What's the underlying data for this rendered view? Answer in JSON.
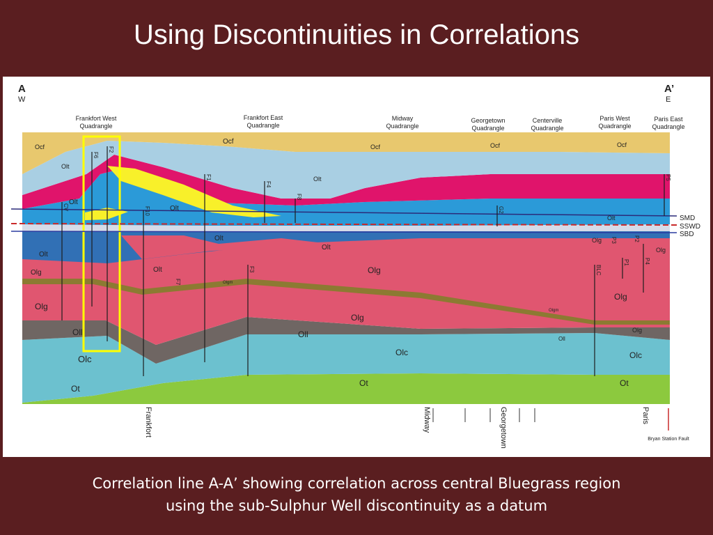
{
  "title": "Using Discontinuities in Correlations",
  "caption_line1": "Correlation line A-A’ showing correlation across central Bluegrass region",
  "caption_line2": "using the sub-Sulphur Well discontinuity as a datum",
  "section": {
    "start_label": "A",
    "start_dir": "W",
    "end_label": "A’",
    "end_dir": "E"
  },
  "quadrangles": [
    {
      "line1": "Frankfort West",
      "line2": "Quadrangle"
    },
    {
      "line1": "Frankfort East",
      "line2": "Quadrangle"
    },
    {
      "line1": "Midway",
      "line2": "Quadrangle"
    },
    {
      "line1": "Georgetown",
      "line2": "Quadrangle"
    },
    {
      "line1": "Centerville",
      "line2": "Quadrangle"
    },
    {
      "line1": "Paris West",
      "line2": "Quadrangle"
    },
    {
      "line1": "Paris East",
      "line2": "Quadrangle"
    }
  ],
  "units": {
    "ocf": "Ocf",
    "olt": "Olt",
    "olg": "Olg",
    "olgm": "Olgm",
    "oll": "Oll",
    "olc": "Olc",
    "ot": "Ot"
  },
  "datums": [
    "SMD",
    "SSWD",
    "SBD"
  ],
  "wells": [
    "F6",
    "F2",
    "F1",
    "F4",
    "F8",
    "F10",
    "F3",
    "F7",
    "CV",
    "G2",
    "BLC",
    "P5",
    "P1",
    "P3",
    "P4",
    "P2"
  ],
  "towns": [
    "Frankfort",
    "Midway",
    "Georgetown",
    "Paris"
  ],
  "fault": "Bryan Station Fault",
  "colors": {
    "ocf": "#e8c86e",
    "olt_light": "#a9cfe3",
    "olt_blue": "#2b9ad8",
    "olt_dark": "#3170b5",
    "olt_pink": "#e0146b",
    "yellow": "#f8f02a",
    "olg": "#e05670",
    "olgm": "#8c7a32",
    "oll": "#6f6663",
    "olc": "#6cc1cf",
    "ot": "#8cc93e",
    "highlight": "#ffff00"
  }
}
